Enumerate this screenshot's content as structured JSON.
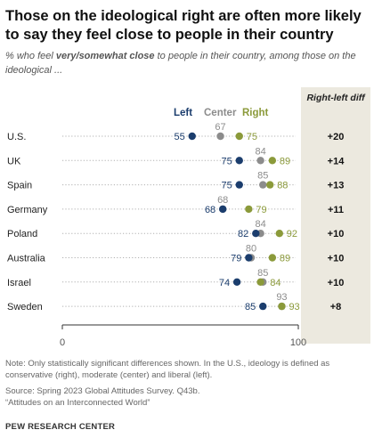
{
  "title": "Those on the ideological right are often more likely to say they feel close to people in their country",
  "subtitle": {
    "pre": "% who feel ",
    "emph": "very/somewhat close",
    "post": " to people in their country, among those on the ideological ..."
  },
  "diff_header": "Right-left diff",
  "colors": {
    "left": "#1b3d6d",
    "center": "#8c8c8c",
    "right": "#8b9a3a"
  },
  "chart_data": {
    "type": "scatter",
    "xlim": [
      0,
      100
    ],
    "x_ticks": [
      "0",
      "100"
    ],
    "series": [
      {
        "name": "Left",
        "color": "#1b3d6d"
      },
      {
        "name": "Center",
        "color": "#8c8c8c"
      },
      {
        "name": "Right",
        "color": "#8b9a3a"
      }
    ],
    "rows": [
      {
        "country": "U.S.",
        "left": 55,
        "center": 67,
        "right": 75,
        "diff": "+20"
      },
      {
        "country": "UK",
        "left": 75,
        "center": 84,
        "right": 89,
        "diff": "+14"
      },
      {
        "country": "Spain",
        "left": 75,
        "center": 85,
        "right": 88,
        "diff": "+13"
      },
      {
        "country": "Germany",
        "left": 68,
        "center": 68,
        "right": 79,
        "diff": "+11"
      },
      {
        "country": "Poland",
        "left": 82,
        "center": 84,
        "right": 92,
        "diff": "+10"
      },
      {
        "country": "Australia",
        "left": 79,
        "center": 80,
        "right": 89,
        "diff": "+10"
      },
      {
        "country": "Israel",
        "left": 74,
        "center": 85,
        "right": 84,
        "diff": "+10"
      },
      {
        "country": "Sweden",
        "left": 85,
        "center": 93,
        "right": 93,
        "diff": "+8"
      }
    ]
  },
  "note": "Note: Only statistically significant differences shown. In the U.S., ideology is defined as conservative (right), moderate (center) and liberal (left).",
  "source": "Source: Spring 2023 Global Attitudes Survey. Q43b.",
  "report": "“Attitudes on an Interconnected World”",
  "brand": "PEW RESEARCH CENTER"
}
